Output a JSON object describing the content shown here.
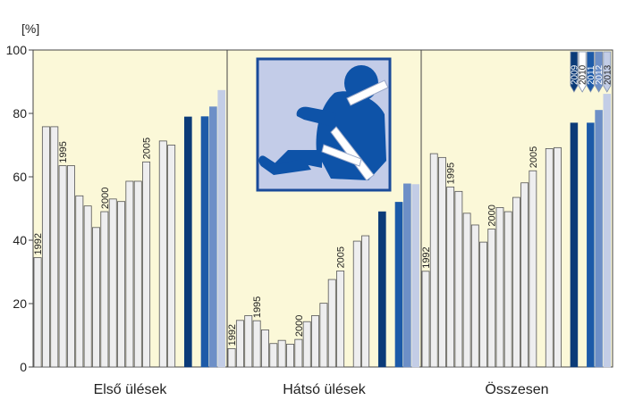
{
  "chart_data": {
    "type": "bar",
    "title": "",
    "ylabel": "[%]",
    "ylim": [
      0,
      100
    ],
    "yticks": [
      "0",
      "20",
      "40",
      "60",
      "80",
      "100"
    ],
    "grid": false,
    "background_color": "#fbf8d8",
    "icon": "seatbelt-passenger-icon",
    "colors": {
      "history": "#eeeeef",
      "outline": "#555555",
      "2009": "#0b3b78",
      "2010": "#ffffff",
      "2011": "#1c5aa8",
      "2012": "#6d8fc7",
      "2013": "#c3cde6"
    },
    "legend": {
      "placement": "top-right",
      "years": [
        "2009",
        "2010",
        "2011",
        "2012",
        "2013"
      ]
    },
    "panels": [
      {
        "label": "Első ülések",
        "history": [
          34.5,
          75.8,
          75.8,
          63.5,
          63.5,
          54,
          50.8,
          44,
          49,
          53,
          52.2,
          58.6,
          58.6,
          64.7,
          null,
          71.3,
          70
        ],
        "year_labels": [
          {
            "text": "1992",
            "index": 0
          },
          {
            "text": "1995",
            "index": 3
          },
          {
            "text": "2000",
            "index": 8
          },
          {
            "text": "2005",
            "index": 13
          }
        ],
        "recent": {
          "2009": 78.9,
          "2010": null,
          "2011": 79,
          "2012": 82.1,
          "2013": 87.3
        }
      },
      {
        "label": "Hátsó ülések",
        "history": [
          5.8,
          14.7,
          16.2,
          14.6,
          11.7,
          7.4,
          8.4,
          7.2,
          8.7,
          14.3,
          16.2,
          20.1,
          27.6,
          30.3,
          null,
          39.7,
          41.4
        ],
        "year_labels": [
          {
            "text": "1992",
            "index": 0
          },
          {
            "text": "1995",
            "index": 3
          },
          {
            "text": "2000",
            "index": 8
          },
          {
            "text": "2005",
            "index": 13
          }
        ],
        "recent": {
          "2009": 49,
          "2010": null,
          "2011": 52,
          "2012": 57.8,
          "2013": 57.6
        }
      },
      {
        "label": "Összesen",
        "history": [
          30.2,
          67.3,
          66.1,
          56.8,
          55.4,
          48.5,
          44.8,
          39.4,
          43.5,
          50.3,
          49,
          53.5,
          58.1,
          61.9,
          null,
          68.9,
          69.2
        ],
        "year_labels": [
          {
            "text": "1992",
            "index": 0
          },
          {
            "text": "1995",
            "index": 3
          },
          {
            "text": "2000",
            "index": 8
          },
          {
            "text": "2005",
            "index": 13
          }
        ],
        "recent": {
          "2009": 77,
          "2010": null,
          "2011": 77,
          "2012": 81,
          "2013": 86.1
        }
      }
    ]
  }
}
